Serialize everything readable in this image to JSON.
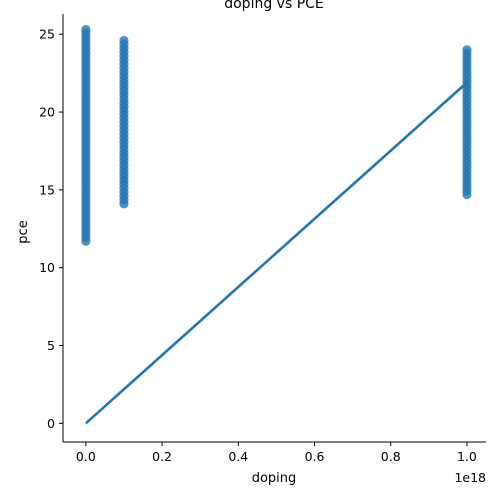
{
  "chart_data": {
    "type": "scatter",
    "title": "doping vs PCE",
    "xlabel": "doping",
    "ylabel": "pce",
    "x_offset_label": "1e18",
    "xlim": [
      -0.06,
      1.05
    ],
    "ylim": [
      -1.2,
      26.3
    ],
    "x_ticks": [
      0.0,
      0.2,
      0.4,
      0.6,
      0.8,
      1.0
    ],
    "x_tick_labels": [
      "0.0",
      "0.2",
      "0.4",
      "0.6",
      "0.8",
      "1.0"
    ],
    "y_ticks": [
      0,
      5,
      10,
      15,
      20,
      25
    ],
    "y_tick_labels": [
      "0",
      "5",
      "10",
      "15",
      "20",
      "25"
    ],
    "grid": false,
    "color": "#1f77b4",
    "series": [
      {
        "kind": "points",
        "clusters": [
          {
            "x": 0.0,
            "y_min": 11.7,
            "y_max": 25.3
          },
          {
            "x": 0.1,
            "y_min": 14.1,
            "y_max": 24.6
          },
          {
            "x": 1.0,
            "y_min": 14.7,
            "y_max": 24.0
          }
        ]
      },
      {
        "kind": "regression",
        "x": [
          0.0,
          1.0
        ],
        "y": [
          0.0,
          21.9
        ]
      }
    ]
  }
}
